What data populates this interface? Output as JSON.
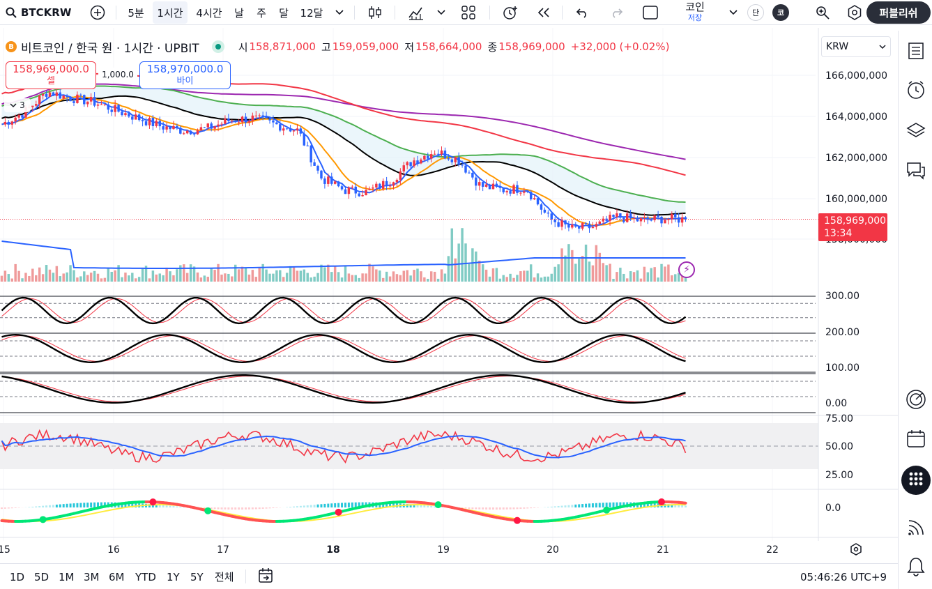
{
  "toolbar": {
    "symbol": "BTCKRW",
    "intervals": [
      "5분",
      "1시간",
      "4시간",
      "날",
      "주",
      "달",
      "12달"
    ],
    "active_interval": "1시간",
    "layout_label": "코인",
    "layout_sub": "저장",
    "badge_a": "단",
    "badge_b": "코",
    "publish_label": "퍼블리쉬"
  },
  "legend": {
    "title": "비트코인 / 한국 원 · 1시간 · UPBIT",
    "coin_glyph": "B",
    "open_key": "시",
    "open": "158,871,000",
    "high_key": "고",
    "high": "159,059,000",
    "low_key": "저",
    "low": "158,664,000",
    "close_key": "종",
    "close": "158,969,000",
    "change": "+32,000 (+0.02%)"
  },
  "order": {
    "sell_price": "158,969,000.0",
    "sell_label": "셀",
    "buy_price": "158,970,000.0",
    "buy_label": "바이",
    "quantity": "1,000.0"
  },
  "collapse_count": "3",
  "currency": "KRW",
  "price_tag": {
    "price": "158,969,000",
    "countdown": "13:34"
  },
  "price_axis": [
    "166,000,000",
    "164,000,000",
    "162,000,000",
    "160,000,000",
    "158,000,000"
  ],
  "osc_axis": [
    "300.00",
    "200.00",
    "100.00",
    "0.00"
  ],
  "rsi_axis": [
    "75.00",
    "50.00",
    "25.00"
  ],
  "macd_axis": [
    "0.0"
  ],
  "time_axis": [
    "15",
    "16",
    "17",
    "18",
    "19",
    "20",
    "21",
    "22"
  ],
  "time_axis_bold": "18",
  "ranges": [
    "1D",
    "5D",
    "1M",
    "3M",
    "6M",
    "YTD",
    "1Y",
    "5Y",
    "전체"
  ],
  "clock": "05:46:26 UTC+9",
  "colors": {
    "up": "#f23645",
    "down": "#2962ff",
    "ma_fast": "#2962ff",
    "ma_orange": "#ff9800",
    "ma_black": "#000000",
    "ma_green": "#4caf50",
    "ma_red": "#f23645",
    "ma_purple": "#9c27b0",
    "vol_up": "#ef9a9a",
    "vol_down": "#80cbc4"
  },
  "chart_data": {
    "type": "candlestick",
    "y_unit": "KRW",
    "ylim": [
      157800000,
      166600000
    ],
    "x_days": [
      15,
      16,
      17,
      18,
      19,
      20,
      21,
      22
    ],
    "close_path": [
      163600000,
      164200000,
      165200000,
      164900000,
      164700000,
      164300000,
      163900000,
      163500000,
      163300000,
      163400000,
      163800000,
      163900000,
      163600000,
      163300000,
      161000000,
      160400000,
      160300000,
      160800000,
      161800000,
      162300000,
      161900000,
      160600000,
      160400000,
      160500000,
      159000000,
      158500000,
      158600000,
      159100000,
      158900000,
      159000000,
      158969000
    ],
    "osc_ylim": [
      0,
      300
    ],
    "rsi_ylim": [
      25,
      75
    ]
  }
}
